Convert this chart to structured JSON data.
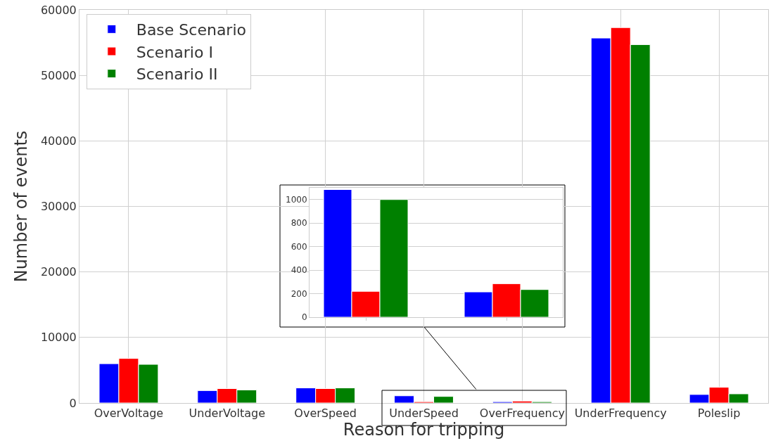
{
  "chart_data": [
    {
      "type": "bar",
      "xlabel": "Reason for tripping",
      "ylabel": "Number of events",
      "categories": [
        "OverVoltage",
        "UnderVoltage",
        "OverSpeed",
        "UnderSpeed",
        "OverFrequency",
        "UnderFrequency",
        "Poleslip"
      ],
      "series": [
        {
          "name": "Base Scenario",
          "color": "#0000ff",
          "values": [
            6000,
            1900,
            2300,
            1100,
            200,
            55700,
            1300
          ]
        },
        {
          "name": "Scenario I",
          "color": "#ff0000",
          "values": [
            6800,
            2200,
            2200,
            200,
            300,
            57300,
            2400
          ]
        },
        {
          "name": "Scenario II",
          "color": "#008000",
          "values": [
            5900,
            2000,
            2300,
            1000,
            200,
            54700,
            1400
          ]
        }
      ],
      "ylim": [
        0,
        60000
      ],
      "yticks": [
        0,
        10000,
        20000,
        30000,
        40000,
        50000,
        60000
      ],
      "grid": true,
      "legend": "top left"
    },
    {
      "type": "bar",
      "categories": [
        null,
        null
      ],
      "series": [
        {
          "color": "#0000ff",
          "values": [
            1085,
            215
          ]
        },
        {
          "color": "#ff0000",
          "values": [
            220,
            285
          ]
        },
        {
          "color": "#008000",
          "values": [
            1000,
            235
          ]
        }
      ],
      "ylim": [
        0,
        1100
      ],
      "yticks": [
        0,
        200,
        400,
        600,
        800,
        1000
      ],
      "grid": "y",
      "tick_labels": "y"
    }
  ]
}
